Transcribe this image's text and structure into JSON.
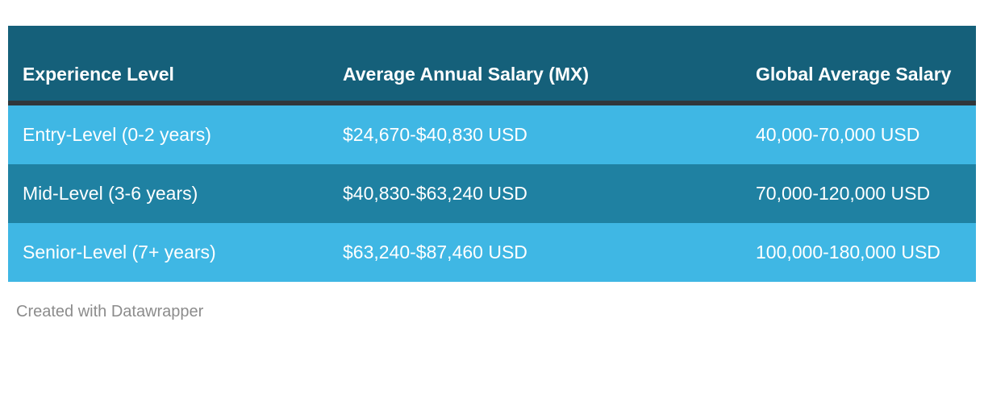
{
  "chart_data": {
    "type": "table",
    "columns": [
      "Experience Level",
      "Average Annual Salary (MX)",
      "Global Average Salary"
    ],
    "rows": [
      [
        "Entry-Level (0-2 years)",
        "$24,670-$40,830 USD",
        "40,000-70,000 USD"
      ],
      [
        "Mid-Level (3-6 years)",
        "$40,830-$63,240 USD",
        "70,000-120,000 USD"
      ],
      [
        "Senior-Level (7+ years)",
        "$63,240-$87,460 USD",
        "100,000-180,000 USD"
      ]
    ],
    "layout_hints": {
      "header_align": "left-bottom",
      "row_striping": [
        "light",
        "dark",
        "light"
      ],
      "grid": "off"
    },
    "colors": {
      "header_background": "#15607a",
      "header_divider": "#30363a",
      "row_light_background": "#3fb7e4",
      "row_dark_background": "#1f81a2",
      "table_text": "#ffffff",
      "attribution_text": "#8c8c8c",
      "page_background": "#ffffff"
    }
  },
  "footer": {
    "attribution": "Created with Datawrapper"
  }
}
